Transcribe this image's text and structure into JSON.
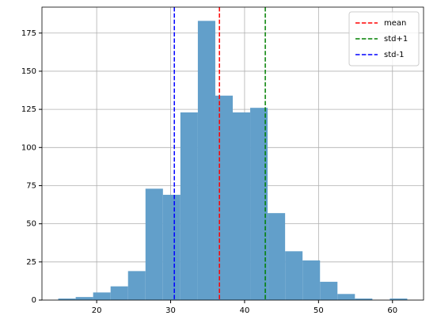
{
  "chart_data": {
    "type": "histogram",
    "bins": [
      14.8,
      17.16,
      19.52,
      21.88,
      24.24,
      26.6,
      28.96,
      31.32,
      33.68,
      36.04,
      38.4,
      40.76,
      43.12,
      45.48,
      47.84,
      50.2,
      52.56,
      54.92,
      57.28,
      59.64,
      62.0
    ],
    "counts": [
      1,
      2,
      5,
      9,
      19,
      73,
      69,
      123,
      183,
      134,
      123,
      126,
      57,
      32,
      26,
      12,
      4,
      1,
      0,
      1
    ],
    "color": "#629fca",
    "lines": [
      {
        "name": "mean",
        "color": "#ff0000",
        "x": 36.6
      },
      {
        "name": "std+1",
        "color": "#008000",
        "x": 42.8
      },
      {
        "name": "std-1",
        "color": "#0000ff",
        "x": 30.5
      }
    ],
    "xlim": [
      12.6,
      64.2
    ],
    "xticks": [
      20,
      30,
      40,
      50,
      60
    ],
    "ylim": [
      0,
      192
    ],
    "yticks": [
      0,
      25,
      50,
      75,
      100,
      125,
      150,
      175
    ],
    "grid": true,
    "legend": "upper right"
  }
}
